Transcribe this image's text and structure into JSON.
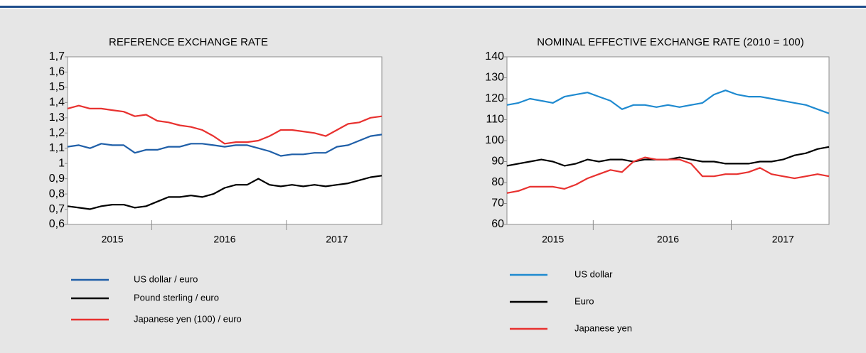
{
  "chart_data": [
    {
      "type": "line",
      "title": "REFERENCE EXCHANGE RATE",
      "categories": [
        null,
        null,
        null,
        null,
        "2015",
        null,
        null,
        null,
        null,
        null,
        null,
        null,
        null,
        null,
        "2016",
        null,
        null,
        null,
        null,
        null,
        null,
        null,
        null,
        null,
        "2017",
        null,
        null,
        null,
        null
      ],
      "series": [
        {
          "name": "US dollar / euro",
          "color": "#1f5fa8",
          "values": [
            1.11,
            1.12,
            1.1,
            1.13,
            1.12,
            1.12,
            1.07,
            1.09,
            1.09,
            1.11,
            1.11,
            1.13,
            1.13,
            1.12,
            1.11,
            1.12,
            1.12,
            1.1,
            1.08,
            1.05,
            1.06,
            1.06,
            1.07,
            1.07,
            1.11,
            1.12,
            1.15,
            1.18,
            1.19
          ]
        },
        {
          "name": "Pound sterling / euro",
          "color": "#000000",
          "values": [
            0.72,
            0.71,
            0.7,
            0.72,
            0.73,
            0.73,
            0.71,
            0.72,
            0.75,
            0.78,
            0.78,
            0.79,
            0.78,
            0.8,
            0.84,
            0.86,
            0.86,
            0.9,
            0.86,
            0.85,
            0.86,
            0.85,
            0.86,
            0.85,
            0.86,
            0.87,
            0.89,
            0.91,
            0.92
          ]
        },
        {
          "name": "Japanese yen (100) / euro",
          "color": "#e8312f",
          "values": [
            1.36,
            1.38,
            1.36,
            1.36,
            1.35,
            1.34,
            1.31,
            1.32,
            1.28,
            1.27,
            1.25,
            1.24,
            1.22,
            1.18,
            1.13,
            1.14,
            1.14,
            1.15,
            1.18,
            1.22,
            1.22,
            1.21,
            1.2,
            1.18,
            1.22,
            1.26,
            1.27,
            1.3,
            1.31
          ]
        }
      ],
      "ylim": [
        0.6,
        1.7
      ],
      "yticks": [
        {
          "value": 0.6,
          "label": "0,6"
        },
        {
          "value": 0.7,
          "label": "0,7"
        },
        {
          "value": 0.8,
          "label": "0,8"
        },
        {
          "value": 0.9,
          "label": "0,9"
        },
        1,
        {
          "value": 1.1,
          "label": "1,1"
        },
        {
          "value": 1.2,
          "label": "1,2"
        },
        {
          "value": 1.3,
          "label": "1,3"
        },
        {
          "value": 1.4,
          "label": "1,4"
        },
        {
          "value": 1.5,
          "label": "1,5"
        },
        {
          "value": 1.6,
          "label": "1,6"
        },
        {
          "value": 1.7,
          "label": "1,7"
        }
      ]
    },
    {
      "type": "line",
      "title": "NOMINAL EFFECTIVE EXCHANGE RATE (2010 = 100)",
      "categories": [
        null,
        null,
        null,
        null,
        "2015",
        null,
        null,
        null,
        null,
        null,
        null,
        null,
        null,
        null,
        "2016",
        null,
        null,
        null,
        null,
        null,
        null,
        null,
        null,
        null,
        "2017",
        null,
        null,
        null,
        null
      ],
      "series": [
        {
          "name": "US dollar",
          "color": "#1f8ad0",
          "values": [
            117,
            118,
            120,
            119,
            118,
            121,
            122,
            123,
            121,
            119,
            115,
            117,
            117,
            116,
            117,
            116,
            117,
            118,
            122,
            124,
            122,
            121,
            121,
            120,
            119,
            118,
            117,
            115,
            113
          ]
        },
        {
          "name": "Euro",
          "color": "#000000",
          "values": [
            88,
            89,
            90,
            91,
            90,
            88,
            89,
            91,
            90,
            91,
            91,
            90,
            91,
            91,
            91,
            92,
            91,
            90,
            90,
            89,
            89,
            89,
            90,
            90,
            91,
            93,
            94,
            96,
            97
          ]
        },
        {
          "name": "Japanese yen",
          "color": "#e8312f",
          "values": [
            75,
            76,
            78,
            78,
            78,
            77,
            79,
            82,
            84,
            86,
            85,
            90,
            92,
            91,
            91,
            91,
            89,
            83,
            83,
            84,
            84,
            85,
            87,
            84,
            83,
            82,
            83,
            84,
            83
          ]
        }
      ],
      "ylim": [
        60,
        140
      ],
      "yticks": [
        60,
        70,
        80,
        90,
        100,
        110,
        120,
        130,
        140
      ]
    }
  ]
}
